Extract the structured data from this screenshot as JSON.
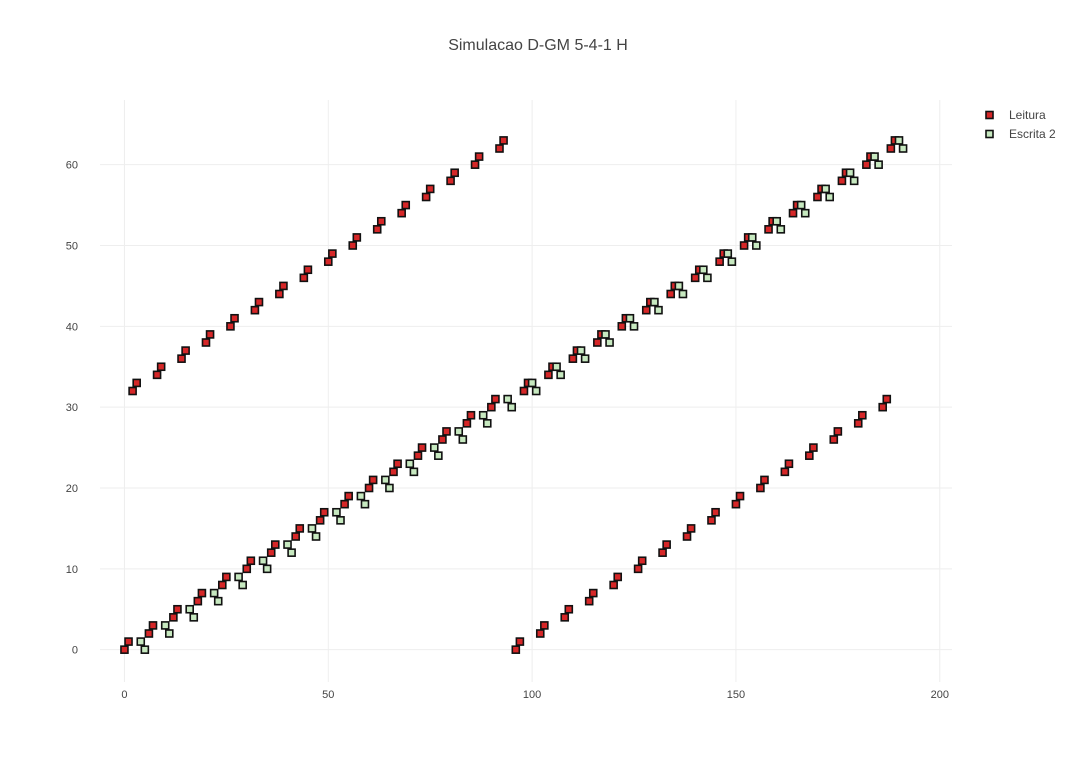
{
  "chart_data": {
    "type": "scatter",
    "title": "Simulacao D-GM 5-4-1 H",
    "xlabel": "",
    "ylabel": "",
    "xlim": [
      -6,
      203
    ],
    "ylim": [
      -4,
      68
    ],
    "x_ticks": [
      0,
      50,
      100,
      150,
      200
    ],
    "y_ticks": [
      0,
      10,
      20,
      30,
      40,
      50,
      60
    ],
    "grid": true,
    "legend_position": "top-right",
    "series": [
      {
        "name": "Leitura",
        "marker": "square",
        "fill_color": "#d62728",
        "edge_color": "#111111",
        "points": [
          [
            0,
            0
          ],
          [
            1,
            1
          ],
          [
            6,
            2
          ],
          [
            7,
            3
          ],
          [
            12,
            4
          ],
          [
            13,
            5
          ],
          [
            18,
            6
          ],
          [
            19,
            7
          ],
          [
            24,
            8
          ],
          [
            25,
            9
          ],
          [
            30,
            10
          ],
          [
            31,
            11
          ],
          [
            36,
            12
          ],
          [
            37,
            13
          ],
          [
            42,
            14
          ],
          [
            43,
            15
          ],
          [
            48,
            16
          ],
          [
            49,
            17
          ],
          [
            54,
            18
          ],
          [
            55,
            19
          ],
          [
            60,
            20
          ],
          [
            61,
            21
          ],
          [
            66,
            22
          ],
          [
            67,
            23
          ],
          [
            72,
            24
          ],
          [
            73,
            25
          ],
          [
            78,
            26
          ],
          [
            79,
            27
          ],
          [
            84,
            28
          ],
          [
            85,
            29
          ],
          [
            90,
            30
          ],
          [
            91,
            31
          ],
          [
            2,
            32
          ],
          [
            3,
            33
          ],
          [
            8,
            34
          ],
          [
            9,
            35
          ],
          [
            14,
            36
          ],
          [
            15,
            37
          ],
          [
            20,
            38
          ],
          [
            21,
            39
          ],
          [
            26,
            40
          ],
          [
            27,
            41
          ],
          [
            32,
            42
          ],
          [
            33,
            43
          ],
          [
            38,
            44
          ],
          [
            39,
            45
          ],
          [
            44,
            46
          ],
          [
            45,
            47
          ],
          [
            50,
            48
          ],
          [
            51,
            49
          ],
          [
            56,
            50
          ],
          [
            57,
            51
          ],
          [
            62,
            52
          ],
          [
            63,
            53
          ],
          [
            68,
            54
          ],
          [
            69,
            55
          ],
          [
            74,
            56
          ],
          [
            75,
            57
          ],
          [
            80,
            58
          ],
          [
            81,
            59
          ],
          [
            86,
            60
          ],
          [
            87,
            61
          ],
          [
            92,
            62
          ],
          [
            93,
            63
          ],
          [
            96,
            0
          ],
          [
            97,
            1
          ],
          [
            102,
            2
          ],
          [
            103,
            3
          ],
          [
            108,
            4
          ],
          [
            109,
            5
          ],
          [
            114,
            6
          ],
          [
            115,
            7
          ],
          [
            120,
            8
          ],
          [
            121,
            9
          ],
          [
            126,
            10
          ],
          [
            127,
            11
          ],
          [
            132,
            12
          ],
          [
            133,
            13
          ],
          [
            138,
            14
          ],
          [
            139,
            15
          ],
          [
            144,
            16
          ],
          [
            145,
            17
          ],
          [
            150,
            18
          ],
          [
            151,
            19
          ],
          [
            156,
            20
          ],
          [
            157,
            21
          ],
          [
            162,
            22
          ],
          [
            163,
            23
          ],
          [
            168,
            24
          ],
          [
            169,
            25
          ],
          [
            174,
            26
          ],
          [
            175,
            27
          ],
          [
            180,
            28
          ],
          [
            181,
            29
          ],
          [
            186,
            30
          ],
          [
            187,
            31
          ],
          [
            98,
            32
          ],
          [
            99,
            33
          ],
          [
            104,
            34
          ],
          [
            105,
            35
          ],
          [
            110,
            36
          ],
          [
            111,
            37
          ],
          [
            116,
            38
          ],
          [
            117,
            39
          ],
          [
            122,
            40
          ],
          [
            123,
            41
          ],
          [
            128,
            42
          ],
          [
            129,
            43
          ],
          [
            134,
            44
          ],
          [
            135,
            45
          ],
          [
            140,
            46
          ],
          [
            141,
            47
          ],
          [
            146,
            48
          ],
          [
            147,
            49
          ],
          [
            152,
            50
          ],
          [
            153,
            51
          ],
          [
            158,
            52
          ],
          [
            159,
            53
          ],
          [
            164,
            54
          ],
          [
            165,
            55
          ],
          [
            170,
            56
          ],
          [
            171,
            57
          ],
          [
            176,
            58
          ],
          [
            177,
            59
          ],
          [
            182,
            60
          ],
          [
            183,
            61
          ],
          [
            188,
            62
          ],
          [
            189,
            63
          ]
        ]
      },
      {
        "name": "Escrita 2",
        "marker": "square",
        "fill_color": "#c7e9c0",
        "edge_color": "#111111",
        "points": [
          [
            4,
            1
          ],
          [
            5,
            0
          ],
          [
            10,
            3
          ],
          [
            11,
            2
          ],
          [
            16,
            5
          ],
          [
            17,
            4
          ],
          [
            22,
            7
          ],
          [
            23,
            6
          ],
          [
            28,
            9
          ],
          [
            29,
            8
          ],
          [
            34,
            11
          ],
          [
            35,
            10
          ],
          [
            40,
            13
          ],
          [
            41,
            12
          ],
          [
            46,
            15
          ],
          [
            47,
            14
          ],
          [
            52,
            17
          ],
          [
            53,
            16
          ],
          [
            58,
            19
          ],
          [
            59,
            18
          ],
          [
            64,
            21
          ],
          [
            65,
            20
          ],
          [
            70,
            23
          ],
          [
            71,
            22
          ],
          [
            76,
            25
          ],
          [
            77,
            24
          ],
          [
            82,
            27
          ],
          [
            83,
            26
          ],
          [
            88,
            29
          ],
          [
            89,
            28
          ],
          [
            94,
            31
          ],
          [
            95,
            30
          ],
          [
            100,
            33
          ],
          [
            101,
            32
          ],
          [
            106,
            35
          ],
          [
            107,
            34
          ],
          [
            112,
            37
          ],
          [
            113,
            36
          ],
          [
            118,
            39
          ],
          [
            119,
            38
          ],
          [
            124,
            41
          ],
          [
            125,
            40
          ],
          [
            130,
            43
          ],
          [
            131,
            42
          ],
          [
            136,
            45
          ],
          [
            137,
            44
          ],
          [
            142,
            47
          ],
          [
            143,
            46
          ],
          [
            148,
            49
          ],
          [
            149,
            48
          ],
          [
            154,
            51
          ],
          [
            155,
            50
          ],
          [
            160,
            53
          ],
          [
            161,
            52
          ],
          [
            166,
            55
          ],
          [
            167,
            54
          ],
          [
            172,
            57
          ],
          [
            173,
            56
          ],
          [
            178,
            59
          ],
          [
            179,
            58
          ],
          [
            184,
            61
          ],
          [
            185,
            60
          ],
          [
            190,
            63
          ],
          [
            191,
            62
          ]
        ]
      }
    ]
  }
}
